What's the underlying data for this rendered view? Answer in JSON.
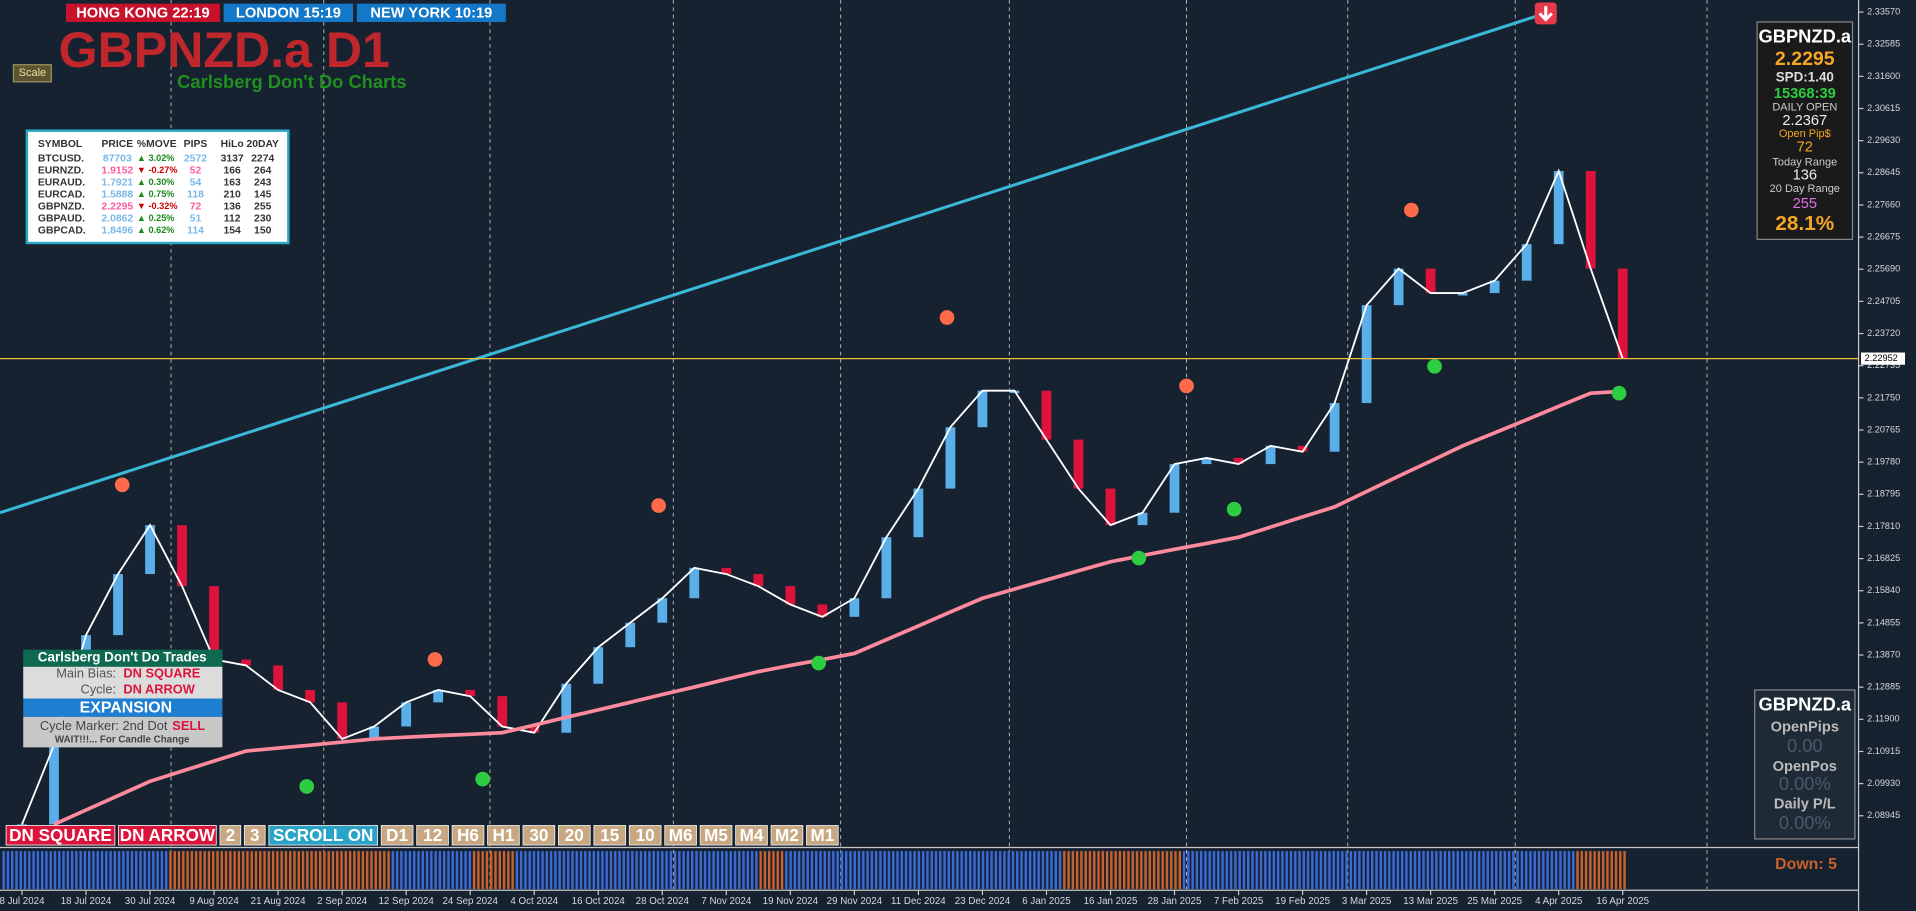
{
  "header": {
    "clocks": [
      "HONG KONG 22:19",
      "LONDON 15:19",
      "NEW YORK 10:19"
    ],
    "title": "GBPNZD.a D1",
    "subtitle": "Carlsberg Don't Do Charts",
    "scale_button": "Scale"
  },
  "watchlist": {
    "columns": [
      "SYMBOL",
      "PRICE",
      "%MOVE",
      "PIPS",
      "HiLo",
      "20DAY"
    ],
    "rows": [
      [
        "BTCUSD.",
        "87703",
        "▲ 3.02%",
        "2572",
        "3137",
        "2274"
      ],
      [
        "EURNZD.",
        "1.9152",
        "▼ -0.27%",
        "52",
        "166",
        "264"
      ],
      [
        "EURAUD.",
        "1.7921",
        "▲ 0.30%",
        "54",
        "163",
        "243"
      ],
      [
        "EURCAD.",
        "1.5888",
        "▲ 0.75%",
        "118",
        "210",
        "145"
      ],
      [
        "GBPNZD.",
        "2.2295",
        "▼ -0.32%",
        "72",
        "136",
        "255"
      ],
      [
        "GBPAUD.",
        "2.0862",
        "▲ 0.25%",
        "51",
        "112",
        "230"
      ],
      [
        "GBPCAD.",
        "1.8496",
        "▲ 0.62%",
        "114",
        "154",
        "150"
      ]
    ]
  },
  "info_panel": {
    "symbol": "GBPNZD.a",
    "price": "2.2295",
    "spread": "SPD:1.40",
    "timer": "15368:39",
    "daily_open_label": "DAILY OPEN",
    "daily_open": "2.2367",
    "open_pips_label": "Open Pip$",
    "open_pips": "72",
    "today_range_label": "Today Range",
    "today_range": "136",
    "day20_range_label": "20 Day Range",
    "day20_range": "255",
    "percent": "28.1%"
  },
  "trade_panel": {
    "symbol": "GBPNZD.a",
    "open_pips_label": "OpenPips",
    "open_pips": "0.00",
    "open_pos_label": "OpenPos",
    "open_pos": "0.00%",
    "daily_pl_label": "Daily P/L",
    "daily_pl": "0.00%"
  },
  "signal_panel": {
    "title": "Carlsberg Don't Do Trades",
    "bias_label": "Main Bias:",
    "bias": "DN SQUARE",
    "cycle_label": "Cycle:",
    "cycle": "DN ARROW",
    "state": "EXPANSION",
    "marker_label": "Cycle Marker: 2nd Dot",
    "marker": "SELL",
    "note": "WAIT!!!... For Candle Change"
  },
  "toolbar": [
    "DN SQUARE",
    "DN ARROW",
    "2",
    "3",
    "SCROLL ON",
    "D1",
    "12",
    "H6",
    "H1",
    "30",
    "20",
    "15",
    "10",
    "M6",
    "M5",
    "M4",
    "M2",
    "M1"
  ],
  "strip": {
    "label": "Down: 5"
  },
  "chart_data": {
    "type": "line",
    "categories": [
      "8 Jul 2024",
      null,
      "18 Jul 2024",
      null,
      "30 Jul 2024",
      null,
      "9 Aug 2024",
      null,
      "21 Aug 2024",
      null,
      "2 Sep 2024",
      null,
      "12 Sep 2024",
      null,
      "24 Sep 2024",
      null,
      "4 Oct 2024",
      null,
      "16 Oct 2024",
      null,
      "28 Oct 2024",
      null,
      "7 Nov 2024",
      null,
      "19 Nov 2024",
      null,
      "29 Nov 2024",
      null,
      "11 Dec 2024",
      null,
      "23 Dec 2024",
      null,
      "6 Jan 2025",
      null,
      "16 Jan 2025",
      null,
      "28 Jan 2025",
      null,
      "7 Feb 2025",
      null,
      "19 Feb 2025",
      null,
      "3 Mar 2025",
      null,
      "13 Mar 2025",
      null,
      "25 Mar 2025",
      null,
      "4 Apr 2025",
      null,
      "16 Apr 2025"
    ],
    "series": [
      {
        "color": "#ffffff",
        "up_color": "#5aaeea",
        "down_color": "#dc143c",
        "values": [
          2.0868,
          2.1111,
          2.1448,
          2.1635,
          2.1785,
          2.1598,
          2.1373,
          2.1355,
          2.128,
          2.1242,
          2.113,
          2.1168,
          2.1242,
          2.128,
          2.1261,
          2.1168,
          2.1149,
          2.1299,
          2.1411,
          2.1486,
          2.1561,
          2.1654,
          2.1635,
          2.1598,
          2.1542,
          2.1504,
          2.1561,
          2.1748,
          2.1897,
          2.2085,
          2.2197,
          2.2197,
          2.2047,
          2.1897,
          2.1785,
          2.1823,
          2.1972,
          2.1991,
          2.1972,
          2.2028,
          2.201,
          2.2159,
          2.2459,
          2.2571,
          2.2496,
          2.2496,
          2.2534,
          2.2646,
          2.287,
          2.2571,
          2.2295
        ]
      },
      {
        "color": "#ff8a9e",
        "values": [
          null,
          2.0868,
          2.0912,
          2.0956,
          2.1,
          2.1031,
          2.1062,
          2.1093,
          2.1102,
          2.1111,
          2.112,
          2.113,
          2.1135,
          2.114,
          2.1144,
          2.1149,
          2.1172,
          2.1196,
          2.1219,
          2.1242,
          2.1266,
          2.1289,
          2.1313,
          2.1336,
          2.1355,
          2.1373,
          2.1392,
          2.1434,
          2.1476,
          2.1519,
          2.1561,
          2.1589,
          2.1617,
          2.1645,
          2.1673,
          2.1692,
          2.1711,
          2.1729,
          2.1748,
          2.1779,
          2.181,
          2.1841,
          2.1888,
          2.1935,
          2.1981,
          2.2028,
          2.2068,
          2.2108,
          2.2149,
          2.2189,
          2.2195
        ]
      }
    ],
    "trendline": [
      2.1823,
      2.335
    ],
    "trendline_color": "#3bb8d8",
    "price_line": 2.22952,
    "price_line_color": "#f0c040",
    "ylim": [
      2.0801,
      2.3394
    ],
    "yticks": [
      {
        "value": 2.08945,
        "label": "2.08945"
      },
      {
        "value": 2.0993,
        "label": "2.09930"
      },
      {
        "value": 2.10915,
        "label": "2.10915"
      },
      {
        "value": 2.119,
        "label": "2.11900"
      },
      {
        "value": 2.12885,
        "label": "2.12885"
      },
      {
        "value": 2.1387,
        "label": "2.13870"
      },
      {
        "value": 2.14855,
        "label": "2.14855"
      },
      {
        "value": 2.1584,
        "label": "2.15840"
      },
      {
        "value": 2.16825,
        "label": "2.16825"
      },
      {
        "value": 2.1781,
        "label": "2.17810"
      },
      {
        "value": 2.18795,
        "label": "2.18795"
      },
      {
        "value": 2.1978,
        "label": "2.19780"
      },
      {
        "value": 2.20765,
        "label": "2.20765"
      },
      {
        "value": 2.2175,
        "label": "2.21750"
      },
      {
        "value": 2.22735,
        "label": "2.22735"
      },
      {
        "value": 2.2372,
        "label": "2.23720"
      },
      {
        "value": 2.24705,
        "label": "2.24705"
      },
      {
        "value": 2.2569,
        "label": "2.25690"
      },
      {
        "value": 2.26675,
        "label": "2.26675"
      },
      {
        "value": 2.2766,
        "label": "2.27660"
      },
      {
        "value": 2.28645,
        "label": "2.28645"
      },
      {
        "value": 2.2963,
        "label": "2.29630"
      },
      {
        "value": 2.30615,
        "label": "2.30615"
      },
      {
        "value": 2.316,
        "label": "2.31600"
      },
      {
        "value": 2.32585,
        "label": "2.32585"
      },
      {
        "value": 2.3357,
        "label": "2.33570"
      }
    ]
  }
}
